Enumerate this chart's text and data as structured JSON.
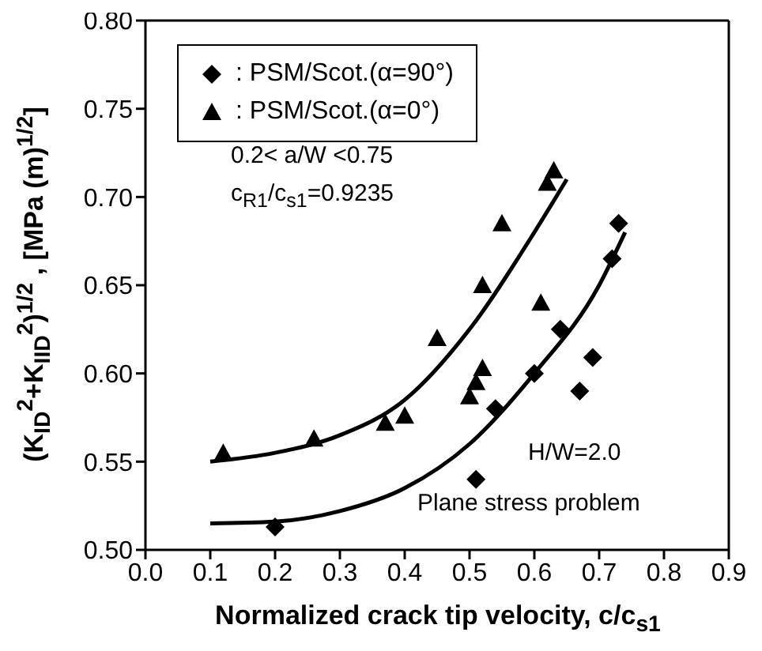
{
  "chart_data": {
    "type": "scatter",
    "xlabel": "Normalized crack tip velocity, c/c$_{s1}$",
    "ylabel": "(K$_{ID}$$^{2}$+K$_{IID}$$^{2}$)$^{1/2}$ , [MPa (m)$^{1/2}$]",
    "annotations": [
      "0.2< a/W <0.75",
      "c$_{R1}$/c$_{s1}$=0.9235",
      "H/W=2.0",
      "Plane stress problem"
    ],
    "series": [
      {
        "name": ": PSM/Scot.(α=90°)",
        "marker": "diamond",
        "color": "#000000",
        "x": [
          0.2,
          0.51,
          0.54,
          0.6,
          0.64,
          0.67,
          0.69,
          0.72,
          0.73
        ],
        "values": [
          0.513,
          0.54,
          0.58,
          0.6,
          0.625,
          0.59,
          0.609,
          0.665,
          0.685
        ]
      },
      {
        "name": ": PSM/Scot.(α=0°)",
        "marker": "triangle",
        "color": "#000000",
        "x": [
          0.12,
          0.26,
          0.37,
          0.4,
          0.45,
          0.5,
          0.51,
          0.52,
          0.52,
          0.55,
          0.61,
          0.62,
          0.63
        ],
        "values": [
          0.555,
          0.563,
          0.572,
          0.576,
          0.62,
          0.587,
          0.595,
          0.603,
          0.65,
          0.685,
          0.64,
          0.708,
          0.715
        ]
      },
      {
        "type": "line",
        "marker": "none",
        "color": "#000000",
        "x": [
          0.1,
          0.2,
          0.3,
          0.4,
          0.5,
          0.6,
          0.65
        ],
        "values": [
          0.55,
          0.555,
          0.565,
          0.585,
          0.625,
          0.68,
          0.71
        ]
      },
      {
        "type": "line",
        "marker": "none",
        "color": "#000000",
        "x": [
          0.1,
          0.2,
          0.3,
          0.4,
          0.5,
          0.6,
          0.7,
          0.74
        ],
        "values": [
          0.515,
          0.516,
          0.522,
          0.535,
          0.56,
          0.6,
          0.65,
          0.68
        ]
      }
    ],
    "xlim": [
      0,
      0.9
    ],
    "xticks": [
      {
        "value": 0,
        "label": "0.0"
      },
      0.1,
      0.2,
      0.3,
      0.4,
      0.5,
      0.6,
      0.7,
      0.8,
      0.9
    ],
    "ylim": [
      0.5,
      0.8
    ],
    "yticks": [
      {
        "value": 0.5,
        "label": "0.50"
      },
      0.55,
      {
        "value": 0.6,
        "label": "0.60"
      },
      0.65,
      {
        "value": 0.7,
        "label": "0.70"
      },
      0.75,
      {
        "value": 0.8,
        "label": "0.80"
      }
    ],
    "grid": false,
    "legend": "top left"
  }
}
